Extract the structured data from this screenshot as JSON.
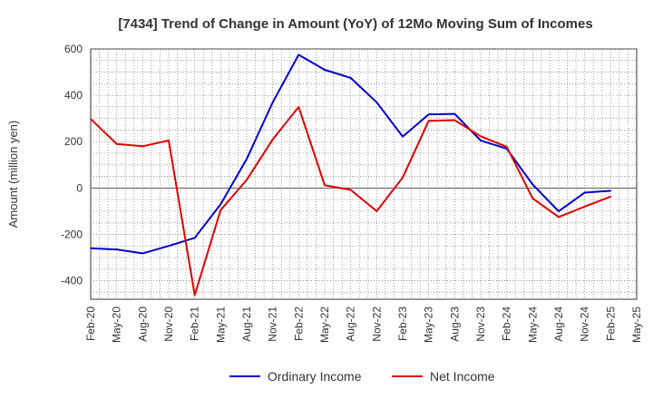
{
  "chart_data": {
    "type": "line",
    "title": "[7434]  Trend of Change in Amount (YoY) of 12Mo Moving Sum of Incomes",
    "ylabel": "Amount (million yen)",
    "xlabel": "",
    "ylim": [
      -480,
      600
    ],
    "yticks": [
      600,
      400,
      200,
      0,
      -200,
      -400
    ],
    "x_ticks": [
      "Feb-20",
      "May-20",
      "Aug-20",
      "Nov-20",
      "Feb-21",
      "May-21",
      "Aug-21",
      "Nov-21",
      "Feb-22",
      "May-22",
      "Aug-22",
      "Nov-22",
      "Feb-23",
      "May-23",
      "Aug-23",
      "Nov-23",
      "Feb-24",
      "May-24",
      "Aug-24",
      "Nov-24",
      "Feb-25",
      "May-25"
    ],
    "grid": true,
    "legend_position": "bottom",
    "series": [
      {
        "name": "Ordinary Income",
        "color": "#0000cc",
        "values": [
          -260,
          -265,
          -282,
          -250,
          -215,
          -70,
          125,
          370,
          575,
          510,
          475,
          370,
          222,
          318,
          320,
          205,
          170,
          15,
          -100,
          -20,
          -12
        ]
      },
      {
        "name": "Net Income",
        "color": "#e00000",
        "values": [
          298,
          190,
          180,
          205,
          -462,
          -95,
          35,
          210,
          350,
          12,
          -8,
          -100,
          45,
          290,
          293,
          223,
          178,
          -45,
          -125,
          -80,
          -37
        ]
      }
    ]
  }
}
